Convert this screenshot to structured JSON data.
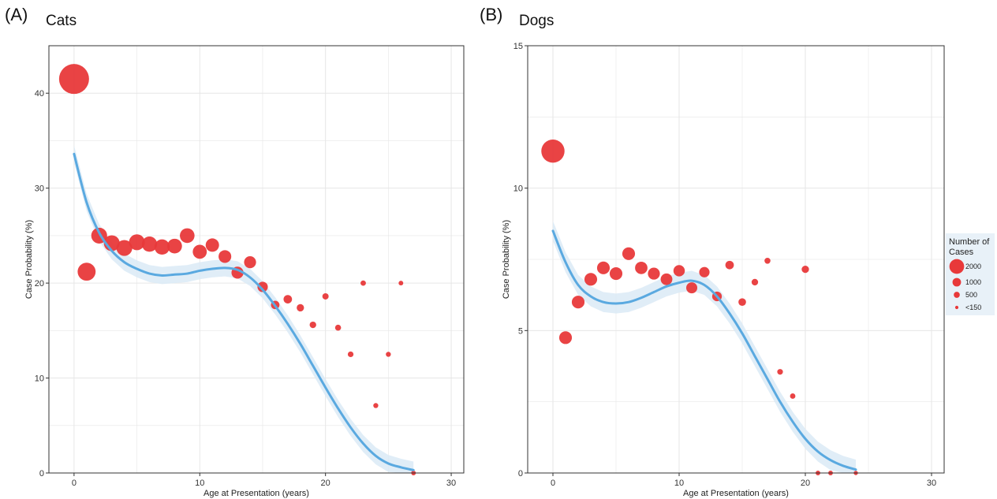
{
  "panels": [
    {
      "letter": "(A)",
      "title": "Cats"
    },
    {
      "letter": "(B)",
      "title": "Dogs"
    }
  ],
  "legend": {
    "title_lines": [
      "Number of",
      "Cases"
    ],
    "entries": [
      {
        "label": "2000",
        "cases": 2000
      },
      {
        "label": "1000",
        "cases": 1000
      },
      {
        "label": "500",
        "cases": 500
      },
      {
        "label": "<150",
        "cases": 150
      }
    ]
  },
  "colors": {
    "points": "#e8393a",
    "smooth": "#5aa9e0",
    "band": "#dbeaf6",
    "grid": "#e6e6e6",
    "legend_bg": "#e8f1f8"
  },
  "chart_data": [
    {
      "type": "scatter",
      "title": "Cats",
      "xlabel": "Age at Presentation (years)",
      "ylabel": "Case Probability (%)",
      "xlim": [
        -2,
        31
      ],
      "ylim": [
        0,
        45
      ],
      "xticks": [
        0,
        10,
        20,
        30
      ],
      "yticks": [
        0,
        10,
        20,
        30,
        40
      ],
      "grid": true,
      "points": [
        {
          "x": 0,
          "y": 41.5,
          "cases": 2500
        },
        {
          "x": 1,
          "y": 21.2,
          "cases": 900
        },
        {
          "x": 2,
          "y": 25.0,
          "cases": 700
        },
        {
          "x": 3,
          "y": 24.2,
          "cases": 700
        },
        {
          "x": 4,
          "y": 23.7,
          "cases": 700
        },
        {
          "x": 5,
          "y": 24.3,
          "cases": 700
        },
        {
          "x": 6,
          "y": 24.1,
          "cases": 650
        },
        {
          "x": 7,
          "y": 23.8,
          "cases": 650
        },
        {
          "x": 8,
          "y": 23.9,
          "cases": 600
        },
        {
          "x": 9,
          "y": 25.0,
          "cases": 600
        },
        {
          "x": 10,
          "y": 23.3,
          "cases": 550
        },
        {
          "x": 11,
          "y": 24.0,
          "cases": 500
        },
        {
          "x": 12,
          "y": 22.8,
          "cases": 450
        },
        {
          "x": 13,
          "y": 21.1,
          "cases": 400
        },
        {
          "x": 14,
          "y": 22.2,
          "cases": 400
        },
        {
          "x": 15,
          "y": 19.6,
          "cases": 300
        },
        {
          "x": 16,
          "y": 17.7,
          "cases": 200
        },
        {
          "x": 17,
          "y": 18.3,
          "cases": 200
        },
        {
          "x": 18,
          "y": 17.4,
          "cases": 150
        },
        {
          "x": 19,
          "y": 15.6,
          "cases": 120
        },
        {
          "x": 20,
          "y": 18.6,
          "cases": 110
        },
        {
          "x": 21,
          "y": 15.3,
          "cases": 100
        },
        {
          "x": 22,
          "y": 12.5,
          "cases": 90
        },
        {
          "x": 23,
          "y": 20.0,
          "cases": 80
        },
        {
          "x": 24,
          "y": 7.1,
          "cases": 70
        },
        {
          "x": 25,
          "y": 12.5,
          "cases": 70
        },
        {
          "x": 26,
          "y": 20.0,
          "cases": 60
        },
        {
          "x": 27,
          "y": 0,
          "cases": 60
        }
      ],
      "smooth": [
        {
          "x": 0,
          "y": 33.6
        },
        {
          "x": 1,
          "y": 28.5
        },
        {
          "x": 2,
          "y": 25.3
        },
        {
          "x": 3,
          "y": 23.4
        },
        {
          "x": 4,
          "y": 22.2
        },
        {
          "x": 5,
          "y": 21.5
        },
        {
          "x": 6,
          "y": 21.0
        },
        {
          "x": 7,
          "y": 20.8
        },
        {
          "x": 8,
          "y": 20.9
        },
        {
          "x": 9,
          "y": 21.0
        },
        {
          "x": 10,
          "y": 21.3
        },
        {
          "x": 11,
          "y": 21.5
        },
        {
          "x": 12,
          "y": 21.6
        },
        {
          "x": 13,
          "y": 21.4
        },
        {
          "x": 14,
          "y": 20.6
        },
        {
          "x": 15,
          "y": 19.3
        },
        {
          "x": 16,
          "y": 17.6
        },
        {
          "x": 17,
          "y": 15.7
        },
        {
          "x": 18,
          "y": 13.6
        },
        {
          "x": 19,
          "y": 11.3
        },
        {
          "x": 20,
          "y": 9.0
        },
        {
          "x": 21,
          "y": 6.8
        },
        {
          "x": 22,
          "y": 4.8
        },
        {
          "x": 23,
          "y": 3.1
        },
        {
          "x": 24,
          "y": 1.8
        },
        {
          "x": 25,
          "y": 1.0
        },
        {
          "x": 26,
          "y": 0.6
        },
        {
          "x": 27,
          "y": 0.3
        }
      ],
      "band_halfwidth": 0.9
    },
    {
      "type": "scatter",
      "title": "Dogs",
      "xlabel": "Age at Presentation (years)",
      "ylabel": "Case Probability (%)",
      "xlim": [
        -2,
        31
      ],
      "ylim": [
        0,
        15
      ],
      "xticks": [
        0,
        10,
        20,
        30
      ],
      "yticks": [
        0,
        5,
        10,
        15
      ],
      "grid": true,
      "points": [
        {
          "x": 0,
          "y": 11.3,
          "cases": 1500
        },
        {
          "x": 1,
          "y": 4.75,
          "cases": 450
        },
        {
          "x": 2,
          "y": 6.0,
          "cases": 450
        },
        {
          "x": 3,
          "y": 6.8,
          "cases": 450
        },
        {
          "x": 4,
          "y": 7.2,
          "cases": 450
        },
        {
          "x": 5,
          "y": 7.0,
          "cases": 450
        },
        {
          "x": 6,
          "y": 7.7,
          "cases": 450
        },
        {
          "x": 7,
          "y": 7.2,
          "cases": 430
        },
        {
          "x": 8,
          "y": 7.0,
          "cases": 400
        },
        {
          "x": 9,
          "y": 6.8,
          "cases": 380
        },
        {
          "x": 10,
          "y": 7.1,
          "cases": 360
        },
        {
          "x": 11,
          "y": 6.5,
          "cases": 340
        },
        {
          "x": 12,
          "y": 7.05,
          "cases": 300
        },
        {
          "x": 13,
          "y": 6.2,
          "cases": 260
        },
        {
          "x": 14,
          "y": 7.3,
          "cases": 200
        },
        {
          "x": 15,
          "y": 6.0,
          "cases": 160
        },
        {
          "x": 16,
          "y": 6.7,
          "cases": 120
        },
        {
          "x": 17,
          "y": 7.45,
          "cases": 100
        },
        {
          "x": 18,
          "y": 3.55,
          "cases": 90
        },
        {
          "x": 19,
          "y": 2.7,
          "cases": 80
        },
        {
          "x": 20,
          "y": 7.15,
          "cases": 150
        },
        {
          "x": 21,
          "y": 0,
          "cases": 60
        },
        {
          "x": 22,
          "y": 0,
          "cases": 60
        },
        {
          "x": 24,
          "y": 0,
          "cases": 50
        }
      ],
      "smooth": [
        {
          "x": 0,
          "y": 8.5
        },
        {
          "x": 1,
          "y": 7.4
        },
        {
          "x": 2,
          "y": 6.6
        },
        {
          "x": 3,
          "y": 6.2
        },
        {
          "x": 4,
          "y": 6.0
        },
        {
          "x": 5,
          "y": 5.95
        },
        {
          "x": 6,
          "y": 6.0
        },
        {
          "x": 7,
          "y": 6.15
        },
        {
          "x": 8,
          "y": 6.35
        },
        {
          "x": 9,
          "y": 6.55
        },
        {
          "x": 10,
          "y": 6.68
        },
        {
          "x": 11,
          "y": 6.75
        },
        {
          "x": 12,
          "y": 6.6
        },
        {
          "x": 13,
          "y": 6.2
        },
        {
          "x": 14,
          "y": 5.6
        },
        {
          "x": 15,
          "y": 4.9
        },
        {
          "x": 16,
          "y": 4.1
        },
        {
          "x": 17,
          "y": 3.3
        },
        {
          "x": 18,
          "y": 2.5
        },
        {
          "x": 19,
          "y": 1.8
        },
        {
          "x": 20,
          "y": 1.2
        },
        {
          "x": 21,
          "y": 0.75
        },
        {
          "x": 22,
          "y": 0.45
        },
        {
          "x": 23,
          "y": 0.25
        },
        {
          "x": 24,
          "y": 0.12
        }
      ],
      "band_halfwidth": 0.35
    }
  ]
}
